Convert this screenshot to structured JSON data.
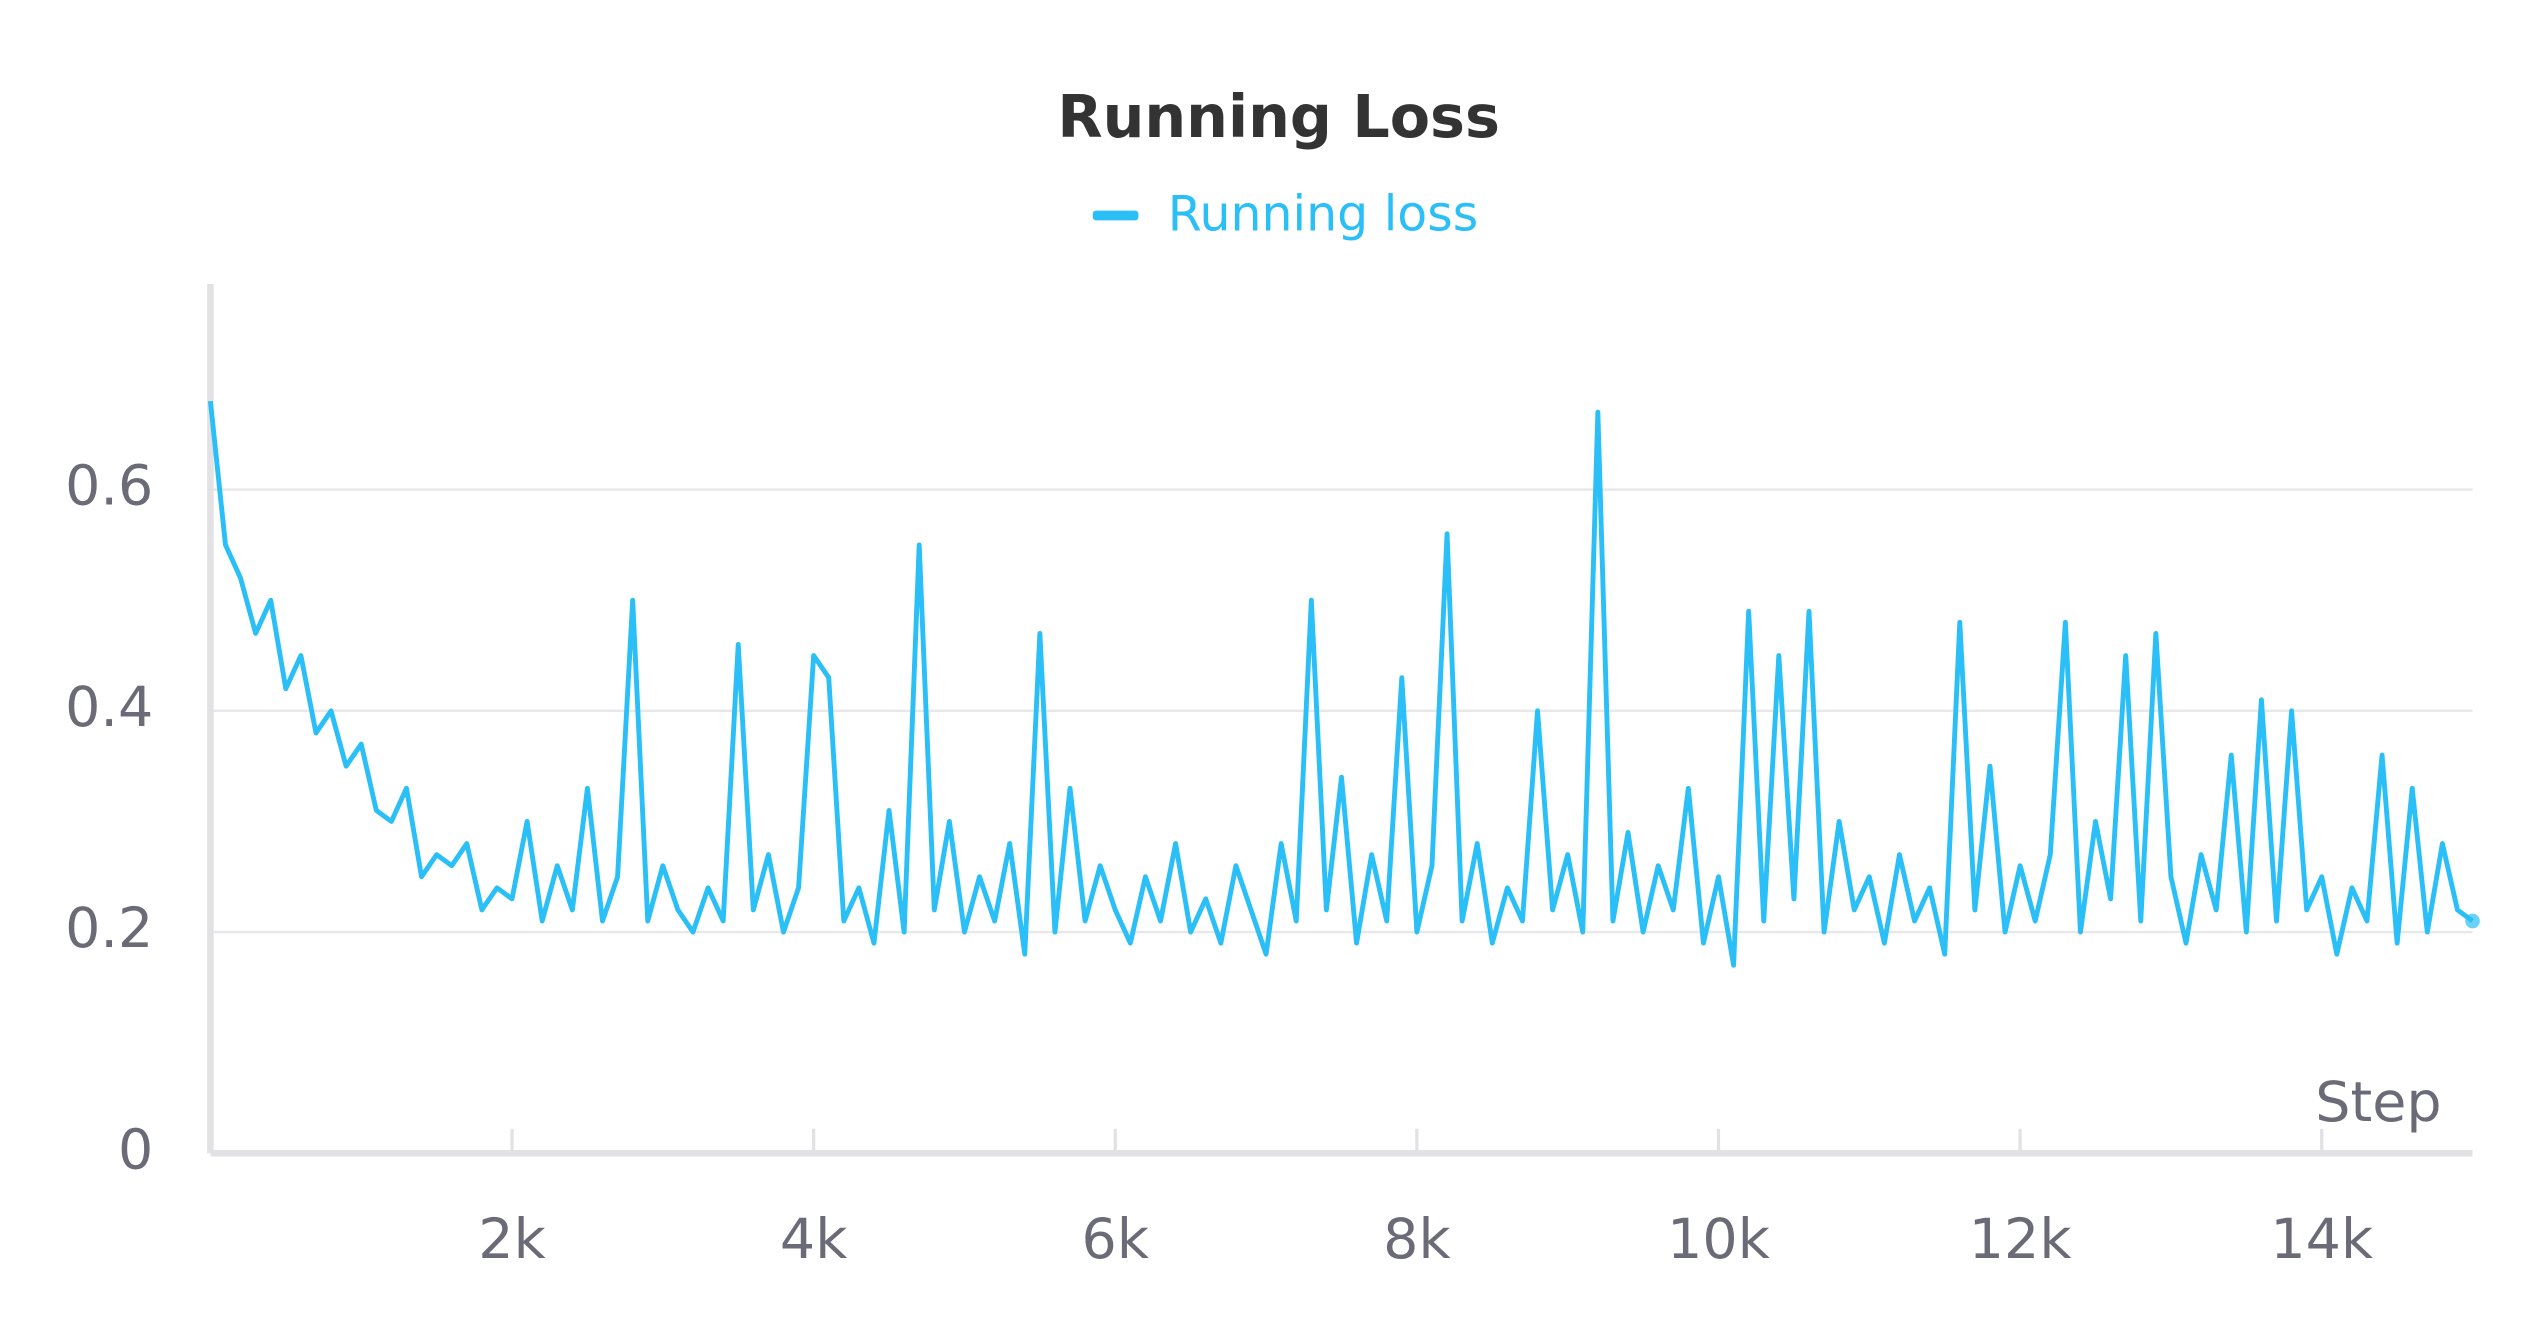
{
  "chart_data": {
    "type": "line",
    "title": "Running Loss",
    "x_label": "Step",
    "x": [
      0,
      100,
      200,
      300,
      400,
      500,
      600,
      700,
      800,
      900,
      1000,
      1100,
      1200,
      1300,
      1400,
      1500,
      1600,
      1700,
      1800,
      1900,
      2000,
      2100,
      2200,
      2300,
      2400,
      2500,
      2600,
      2700,
      2800,
      2900,
      3000,
      3100,
      3200,
      3300,
      3400,
      3500,
      3600,
      3700,
      3800,
      3900,
      4000,
      4100,
      4200,
      4300,
      4400,
      4500,
      4600,
      4700,
      4800,
      4900,
      5000,
      5100,
      5200,
      5300,
      5400,
      5500,
      5600,
      5700,
      5800,
      5900,
      6000,
      6100,
      6200,
      6300,
      6400,
      6500,
      6600,
      6700,
      6800,
      6900,
      7000,
      7100,
      7200,
      7300,
      7400,
      7500,
      7600,
      7700,
      7800,
      7900,
      8000,
      8100,
      8200,
      8300,
      8400,
      8500,
      8600,
      8700,
      8800,
      8900,
      9000,
      9100,
      9200,
      9300,
      9400,
      9500,
      9600,
      9700,
      9800,
      9900,
      10000,
      10100,
      10200,
      10300,
      10400,
      10500,
      10600,
      10700,
      10800,
      10900,
      11000,
      11100,
      11200,
      11300,
      11400,
      11500,
      11600,
      11700,
      11800,
      11900,
      12000,
      12100,
      12200,
      12300,
      12400,
      12500,
      12600,
      12700,
      12800,
      12900,
      13000,
      13100,
      13200,
      13300,
      13400,
      13500,
      13600,
      13700,
      13800,
      13900,
      14000,
      14100,
      14200,
      14300,
      14400,
      14500,
      14600,
      14700,
      14800,
      14900,
      15000
    ],
    "series": [
      {
        "name": "Running loss",
        "color": "#2bbff7",
        "values": [
          0.68,
          0.55,
          0.52,
          0.47,
          0.5,
          0.42,
          0.45,
          0.38,
          0.4,
          0.35,
          0.37,
          0.31,
          0.3,
          0.33,
          0.25,
          0.27,
          0.26,
          0.28,
          0.22,
          0.24,
          0.23,
          0.3,
          0.21,
          0.26,
          0.22,
          0.33,
          0.21,
          0.25,
          0.5,
          0.21,
          0.26,
          0.22,
          0.2,
          0.24,
          0.21,
          0.46,
          0.22,
          0.27,
          0.2,
          0.24,
          0.45,
          0.43,
          0.21,
          0.24,
          0.19,
          0.31,
          0.2,
          0.55,
          0.22,
          0.3,
          0.2,
          0.25,
          0.21,
          0.28,
          0.18,
          0.47,
          0.2,
          0.33,
          0.21,
          0.26,
          0.22,
          0.19,
          0.25,
          0.21,
          0.28,
          0.2,
          0.23,
          0.19,
          0.26,
          0.22,
          0.18,
          0.28,
          0.21,
          0.5,
          0.22,
          0.34,
          0.19,
          0.27,
          0.21,
          0.43,
          0.2,
          0.26,
          0.56,
          0.21,
          0.28,
          0.19,
          0.24,
          0.21,
          0.4,
          0.22,
          0.27,
          0.2,
          0.67,
          0.21,
          0.29,
          0.2,
          0.26,
          0.22,
          0.33,
          0.19,
          0.25,
          0.17,
          0.49,
          0.21,
          0.45,
          0.23,
          0.49,
          0.2,
          0.3,
          0.22,
          0.25,
          0.19,
          0.27,
          0.21,
          0.24,
          0.18,
          0.48,
          0.22,
          0.35,
          0.2,
          0.26,
          0.21,
          0.27,
          0.48,
          0.2,
          0.3,
          0.23,
          0.45,
          0.21,
          0.47,
          0.25,
          0.19,
          0.27,
          0.22,
          0.36,
          0.2,
          0.41,
          0.21,
          0.4,
          0.22,
          0.25,
          0.18,
          0.24,
          0.21,
          0.36,
          0.19,
          0.33,
          0.2,
          0.28,
          0.22,
          0.21
        ]
      }
    ],
    "xlim": [
      0,
      15000
    ],
    "ylim": [
      0,
      0.78
    ],
    "xticks": [
      {
        "value": 2000,
        "label": "2k"
      },
      {
        "value": 4000,
        "label": "4k"
      },
      {
        "value": 6000,
        "label": "6k"
      },
      {
        "value": 8000,
        "label": "8k"
      },
      {
        "value": 10000,
        "label": "10k"
      },
      {
        "value": 12000,
        "label": "12k"
      },
      {
        "value": 14000,
        "label": "14k"
      }
    ],
    "yticks": [
      0,
      0.2,
      0.4,
      0.6
    ],
    "grid": true
  }
}
